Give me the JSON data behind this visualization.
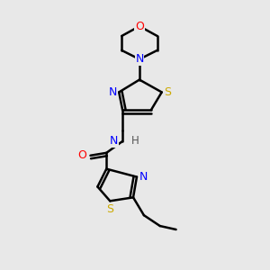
{
  "bg_color": "#e8e8e8",
  "atom_colors": {
    "C": "#000000",
    "N": "#0000ff",
    "O": "#ff0000",
    "S": "#ccaa00",
    "H": "#555555"
  },
  "bond_color": "#000000",
  "bond_width": 1.8,
  "fig_size": [
    3.0,
    3.0
  ],
  "dpi": 100
}
